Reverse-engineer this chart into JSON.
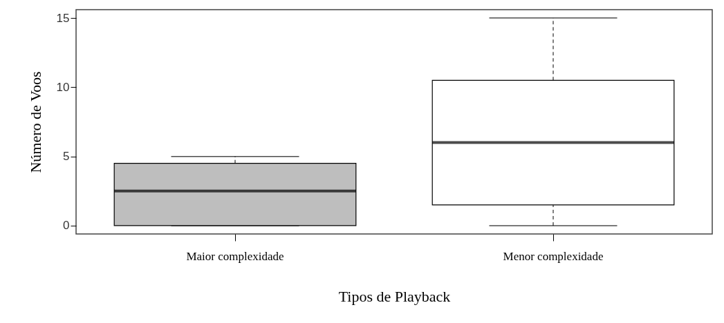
{
  "chart_data": {
    "type": "box",
    "xlabel": "Tipos de Playback",
    "ylabel": "Número de Voos",
    "categories": [
      "Maior complexidade",
      "Menor complexidade"
    ],
    "boxes": [
      {
        "low": 0,
        "q1": 0,
        "median": 2.5,
        "q3": 4.5,
        "high": 5
      },
      {
        "low": 0,
        "q1": 1.5,
        "median": 6,
        "q3": 10.5,
        "high": 15
      }
    ],
    "colors": [
      "#bebebe",
      "#ffffff"
    ],
    "ylim": [
      -0.6,
      15.6
    ],
    "yticks": [
      0,
      5,
      10,
      15
    ]
  }
}
